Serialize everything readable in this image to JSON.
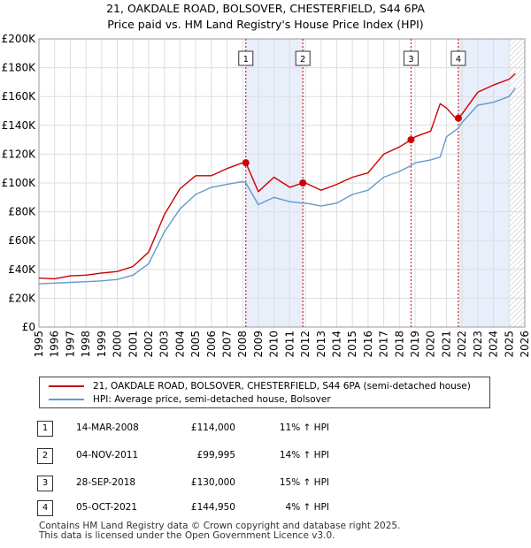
{
  "title_line1": "21, OAKDALE ROAD, BOLSOVER, CHESTERFIELD, S44 6PA",
  "title_line2": "Price paid vs. HM Land Registry's House Price Index (HPI)",
  "colors": {
    "property": "#cc0000",
    "hpi": "#6699cc",
    "shade": "#e8eefa",
    "vline": "#cc0000",
    "grid": "#dddddd"
  },
  "chart_data": {
    "type": "line",
    "title": "Price paid vs. HM Land Registry's House Price Index (HPI)",
    "xlabel": "",
    "ylabel": "",
    "xlim": [
      1995,
      2026
    ],
    "ylim": [
      0,
      200000
    ],
    "x_ticks": [
      "1995",
      "1996",
      "1997",
      "1998",
      "1999",
      "2000",
      "2001",
      "2002",
      "2003",
      "2004",
      "2005",
      "2006",
      "2007",
      "2008",
      "2009",
      "2010",
      "2011",
      "2012",
      "2013",
      "2014",
      "2015",
      "2016",
      "2017",
      "2018",
      "2019",
      "2020",
      "2021",
      "2022",
      "2023",
      "2024",
      "2025",
      "2026"
    ],
    "y_ticks": [
      {
        "v": 0,
        "label": "£0"
      },
      {
        "v": 20000,
        "label": "£20K"
      },
      {
        "v": 40000,
        "label": "£40K"
      },
      {
        "v": 60000,
        "label": "£60K"
      },
      {
        "v": 80000,
        "label": "£80K"
      },
      {
        "v": 100000,
        "label": "£100K"
      },
      {
        "v": 120000,
        "label": "£120K"
      },
      {
        "v": 140000,
        "label": "£140K"
      },
      {
        "v": 160000,
        "label": "£160K"
      },
      {
        "v": 180000,
        "label": "£180K"
      },
      {
        "v": 200000,
        "label": "£200K"
      }
    ],
    "grid": true,
    "shaded_ranges": [
      [
        2008.2,
        2011.84
      ],
      [
        2021.76,
        2025.0
      ]
    ],
    "future_hatch_from": 2025.0,
    "series": [
      {
        "name": "21, OAKDALE ROAD, BOLSOVER, CHESTERFIELD, S44 6PA (semi-detached house)",
        "x": [
          1995,
          1996,
          1997,
          1998,
          1999,
          2000,
          2001,
          2002,
          2003,
          2004,
          2005,
          2006,
          2007,
          2008,
          2008.2,
          2009,
          2010,
          2011,
          2011.84,
          2012,
          2013,
          2014,
          2015,
          2016,
          2017,
          2018,
          2018.74,
          2019,
          2020,
          2020.6,
          2021,
          2021.5,
          2021.76,
          2022,
          2023,
          2024,
          2025,
          2025.4
        ],
        "values": [
          34000,
          33500,
          35500,
          36000,
          37500,
          38500,
          42000,
          52000,
          78000,
          96000,
          105000,
          105000,
          110000,
          114000,
          114000,
          94000,
          104000,
          97000,
          99995,
          100000,
          95000,
          99000,
          104000,
          107000,
          120000,
          125000,
          130000,
          132000,
          136000,
          155000,
          152000,
          146000,
          144950,
          148000,
          163000,
          168000,
          172000,
          176000
        ]
      },
      {
        "name": "HPI: Average price, semi-detached house, Bolsover",
        "x": [
          1995,
          1996,
          1997,
          1998,
          1999,
          2000,
          2001,
          2002,
          2003,
          2004,
          2005,
          2006,
          2007,
          2008,
          2008.2,
          2009,
          2010,
          2011,
          2011.84,
          2012,
          2013,
          2014,
          2015,
          2016,
          2017,
          2018,
          2018.74,
          2019,
          2020,
          2020.6,
          2021,
          2021.5,
          2021.76,
          2022,
          2023,
          2024,
          2025,
          2025.4
        ],
        "values": [
          30000,
          30500,
          31000,
          31500,
          32000,
          33000,
          36000,
          44000,
          66000,
          82000,
          92000,
          97000,
          99000,
          101000,
          100000,
          85000,
          90000,
          87000,
          86000,
          86000,
          84000,
          86000,
          92000,
          95000,
          104000,
          108000,
          112000,
          114000,
          116000,
          118000,
          132000,
          136000,
          138000,
          142000,
          154000,
          156000,
          160000,
          166000
        ]
      }
    ],
    "sale_markers": [
      {
        "id": "1",
        "x": 2008.2,
        "value": 114000
      },
      {
        "id": "2",
        "x": 2011.84,
        "value": 99995
      },
      {
        "id": "3",
        "x": 2018.74,
        "value": 130000
      },
      {
        "id": "4",
        "x": 2021.76,
        "value": 144950
      }
    ]
  },
  "legend": {
    "property_label": "21, OAKDALE ROAD, BOLSOVER, CHESTERFIELD, S44 6PA (semi-detached house)",
    "hpi_label": "HPI: Average price, semi-detached house, Bolsover"
  },
  "sales": [
    {
      "num": "1",
      "date": "14-MAR-2008",
      "price": "£114,000",
      "hpi": "11% ↑ HPI"
    },
    {
      "num": "2",
      "date": "04-NOV-2011",
      "price": "£99,995",
      "hpi": "14% ↑ HPI"
    },
    {
      "num": "3",
      "date": "28-SEP-2018",
      "price": "£130,000",
      "hpi": "15% ↑ HPI"
    },
    {
      "num": "4",
      "date": "05-OCT-2021",
      "price": "£144,950",
      "hpi": "4% ↑ HPI"
    }
  ],
  "footer_line1": "Contains HM Land Registry data © Crown copyright and database right 2025.",
  "footer_line2": "This data is licensed under the Open Government Licence v3.0."
}
